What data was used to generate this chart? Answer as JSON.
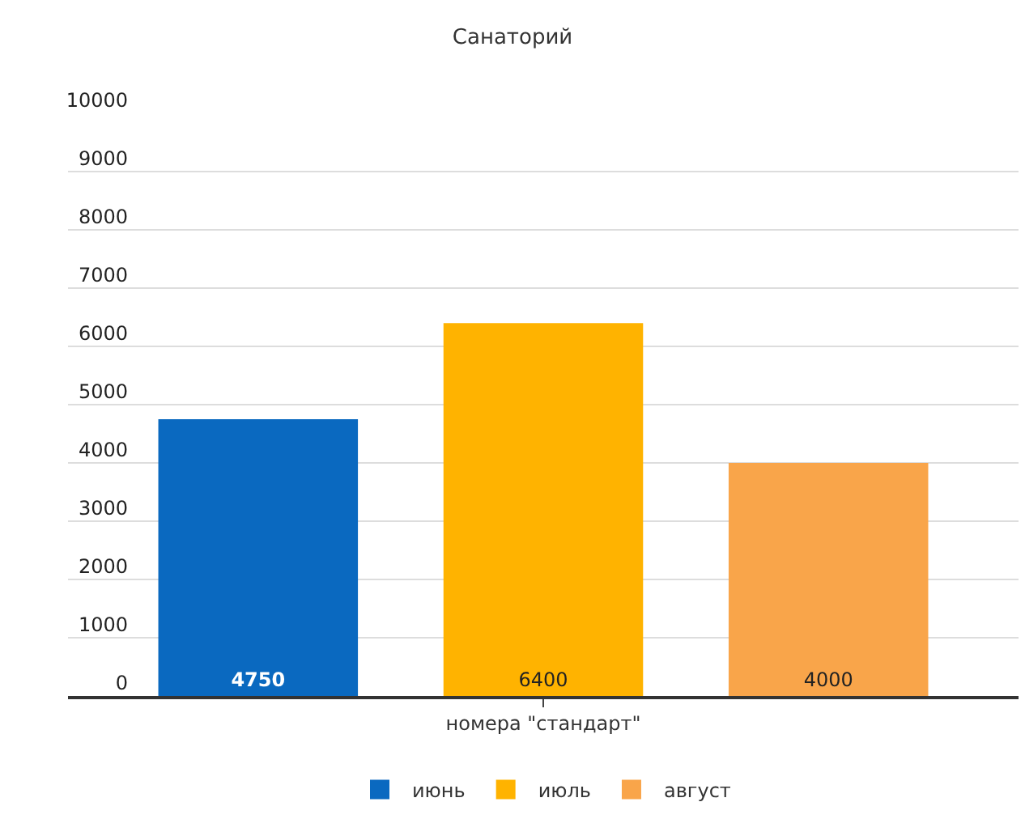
{
  "chart_data": {
    "type": "bar",
    "title": "Санаторий",
    "categories": [
      "номера \"стандарт\""
    ],
    "series": [
      {
        "name": "июнь",
        "color": "#0a69c0",
        "values": [
          4750
        ]
      },
      {
        "name": "июль",
        "color": "#ffb300",
        "values": [
          6400
        ]
      },
      {
        "name": "август",
        "color": "#f9a54a",
        "values": [
          4000
        ]
      }
    ],
    "ylim": [
      0,
      10000
    ],
    "yticks": [
      0,
      1000,
      2000,
      3000,
      4000,
      5000,
      6000,
      7000,
      8000,
      9000,
      10000
    ],
    "grid": "y",
    "legend": "bottom",
    "data_labels": true
  }
}
